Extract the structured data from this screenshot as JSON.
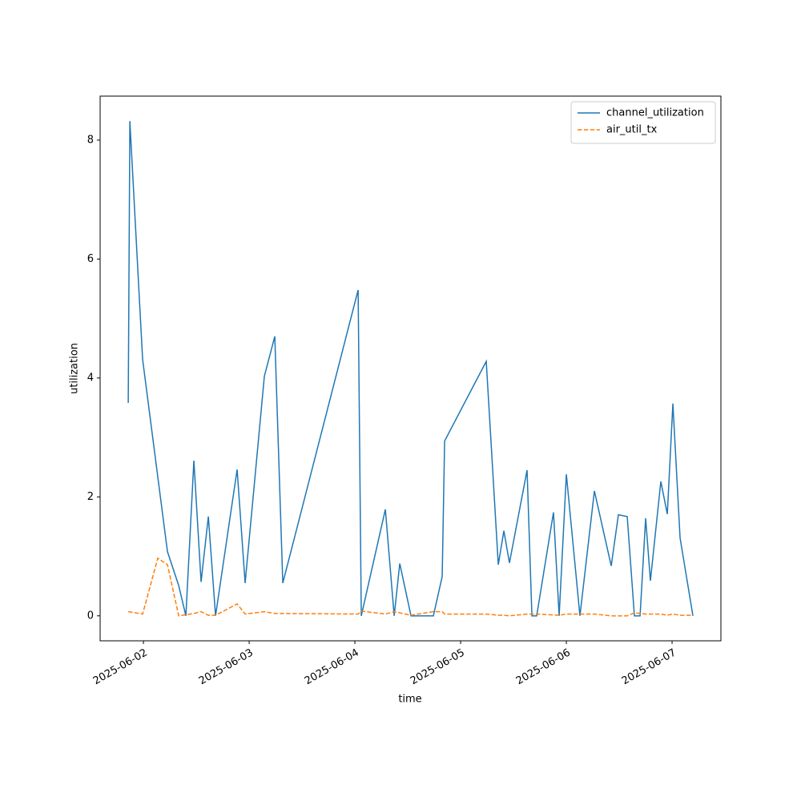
{
  "chart_data": {
    "type": "line",
    "xlabel": "time",
    "ylabel": "utilization",
    "xlim": [
      "2025-06-01T14:10",
      "2025-06-07T11:05"
    ],
    "xticks": [
      "2025-06-02",
      "2025-06-03",
      "2025-06-04",
      "2025-06-05",
      "2025-06-06",
      "2025-06-07"
    ],
    "ylim": [
      -0.42,
      8.74
    ],
    "yticks": [
      0,
      2,
      4,
      6,
      8
    ],
    "grid": false,
    "legend": "upper right",
    "series": [
      {
        "name": "channel_utilization",
        "color": "#1f77b4",
        "dash": "solid",
        "x": [
          "2025-06-01T20:33",
          "2025-06-01T20:55",
          "2025-06-01T23:49",
          "2025-06-02T05:27",
          "2025-06-02T08:00",
          "2025-06-02T09:38",
          "2025-06-02T11:27",
          "2025-06-02T13:05",
          "2025-06-02T14:44",
          "2025-06-02T16:22",
          "2025-06-02T21:16",
          "2025-06-02T23:05",
          "2025-06-03T03:27",
          "2025-06-03T05:49",
          "2025-06-03T07:38",
          "2025-06-04T00:44",
          "2025-06-04T01:27",
          "2025-06-04T06:55",
          "2025-06-04T08:55",
          "2025-06-04T10:11",
          "2025-06-04T12:44",
          "2025-06-04T17:49",
          "2025-06-04T19:49",
          "2025-06-04T20:22",
          "2025-06-05T05:49",
          "2025-06-05T08:33",
          "2025-06-05T09:49",
          "2025-06-05T11:05",
          "2025-06-05T15:05",
          "2025-06-05T16:11",
          "2025-06-05T17:16",
          "2025-06-05T21:05",
          "2025-06-05T22:22",
          "2025-06-06T00:00",
          "2025-06-06T03:05",
          "2025-06-06T06:22",
          "2025-06-06T10:11",
          "2025-06-06T11:49",
          "2025-06-06T13:49",
          "2025-06-06T15:27",
          "2025-06-06T16:44",
          "2025-06-06T18:00",
          "2025-06-06T19:05",
          "2025-06-06T21:27",
          "2025-06-06T22:55",
          "2025-06-07T00:11",
          "2025-06-07T01:49",
          "2025-06-07T04:44"
        ],
        "values": [
          3.58,
          8.32,
          4.31,
          1.08,
          0.51,
          0,
          2.61,
          0.57,
          1.67,
          0,
          2.46,
          0.55,
          4.03,
          4.7,
          0.55,
          5.48,
          0,
          1.79,
          0,
          0.88,
          0,
          0,
          0.66,
          2.94,
          4.28,
          0.86,
          1.43,
          0.89,
          2.45,
          0,
          0,
          1.74,
          0,
          2.38,
          0,
          2.1,
          0.84,
          1.7,
          1.67,
          0,
          0,
          1.64,
          0.59,
          2.26,
          1.71,
          3.57,
          1.31,
          0
        ]
      },
      {
        "name": "air_util_tx",
        "color": "#ff7f0e",
        "dash": "dashed",
        "x": [
          "2025-06-01T20:33",
          "2025-06-01T23:49",
          "2025-06-02T03:16",
          "2025-06-02T05:27",
          "2025-06-02T08:00",
          "2025-06-02T11:27",
          "2025-06-02T13:05",
          "2025-06-02T14:44",
          "2025-06-02T16:22",
          "2025-06-02T21:16",
          "2025-06-02T23:05",
          "2025-06-03T03:27",
          "2025-06-03T05:49",
          "2025-06-04T00:44",
          "2025-06-04T01:27",
          "2025-06-04T06:55",
          "2025-06-04T08:55",
          "2025-06-04T12:44",
          "2025-06-04T17:49",
          "2025-06-04T19:49",
          "2025-06-04T20:22",
          "2025-06-05T05:49",
          "2025-06-05T08:33",
          "2025-06-05T09:49",
          "2025-06-05T11:05",
          "2025-06-05T15:05",
          "2025-06-05T17:16",
          "2025-06-05T22:22",
          "2025-06-06T00:00",
          "2025-06-06T06:22",
          "2025-06-06T10:11",
          "2025-06-06T13:49",
          "2025-06-06T15:27",
          "2025-06-06T18:00",
          "2025-06-06T21:27",
          "2025-06-06T22:55",
          "2025-06-07T00:11",
          "2025-06-07T01:49",
          "2025-06-07T04:44"
        ],
        "values": [
          0.07,
          0.03,
          0.97,
          0.86,
          0,
          0.04,
          0.07,
          0.01,
          0.01,
          0.2,
          0.03,
          0.07,
          0.04,
          0.03,
          0.08,
          0.03,
          0.07,
          0.01,
          0.07,
          0.07,
          0.03,
          0.03,
          0.01,
          0.01,
          0,
          0.03,
          0.03,
          0.01,
          0.03,
          0.03,
          0,
          0,
          0.05,
          0.03,
          0.03,
          0.01,
          0.03,
          0.01,
          0.01
        ]
      }
    ]
  }
}
